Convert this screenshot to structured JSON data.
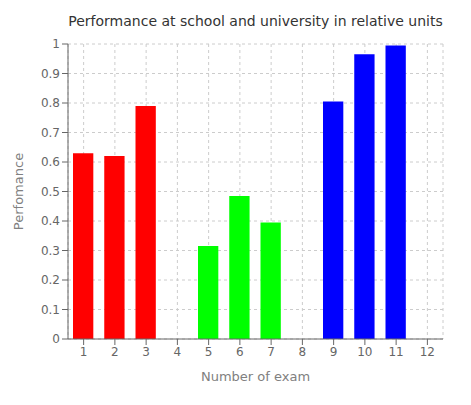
{
  "chart_data": {
    "type": "bar",
    "title": "Performance at school and university in relative units",
    "x_label": "Number of exam",
    "y_label": "Perfomance",
    "x": [
      1,
      2,
      3,
      5,
      6,
      7,
      9,
      10,
      11
    ],
    "values": [
      0.63,
      0.62,
      0.79,
      0.315,
      0.485,
      0.395,
      0.805,
      0.965,
      0.995
    ],
    "colors": [
      "#ff0000",
      "#ff0000",
      "#ff0000",
      "#00ff00",
      "#00ff00",
      "#00ff00",
      "#0000ff",
      "#0000ff",
      "#0000ff"
    ],
    "xlim": [
      0.5,
      12.5
    ],
    "xticks": [
      1,
      2,
      3,
      4,
      5,
      6,
      7,
      8,
      9,
      10,
      11,
      12
    ],
    "ylim": [
      0,
      1.0
    ],
    "yticks": [
      0,
      0.1,
      0.2,
      0.3,
      0.4,
      0.5,
      0.6,
      0.7,
      0.8,
      0.9,
      1
    ],
    "grid": true
  }
}
